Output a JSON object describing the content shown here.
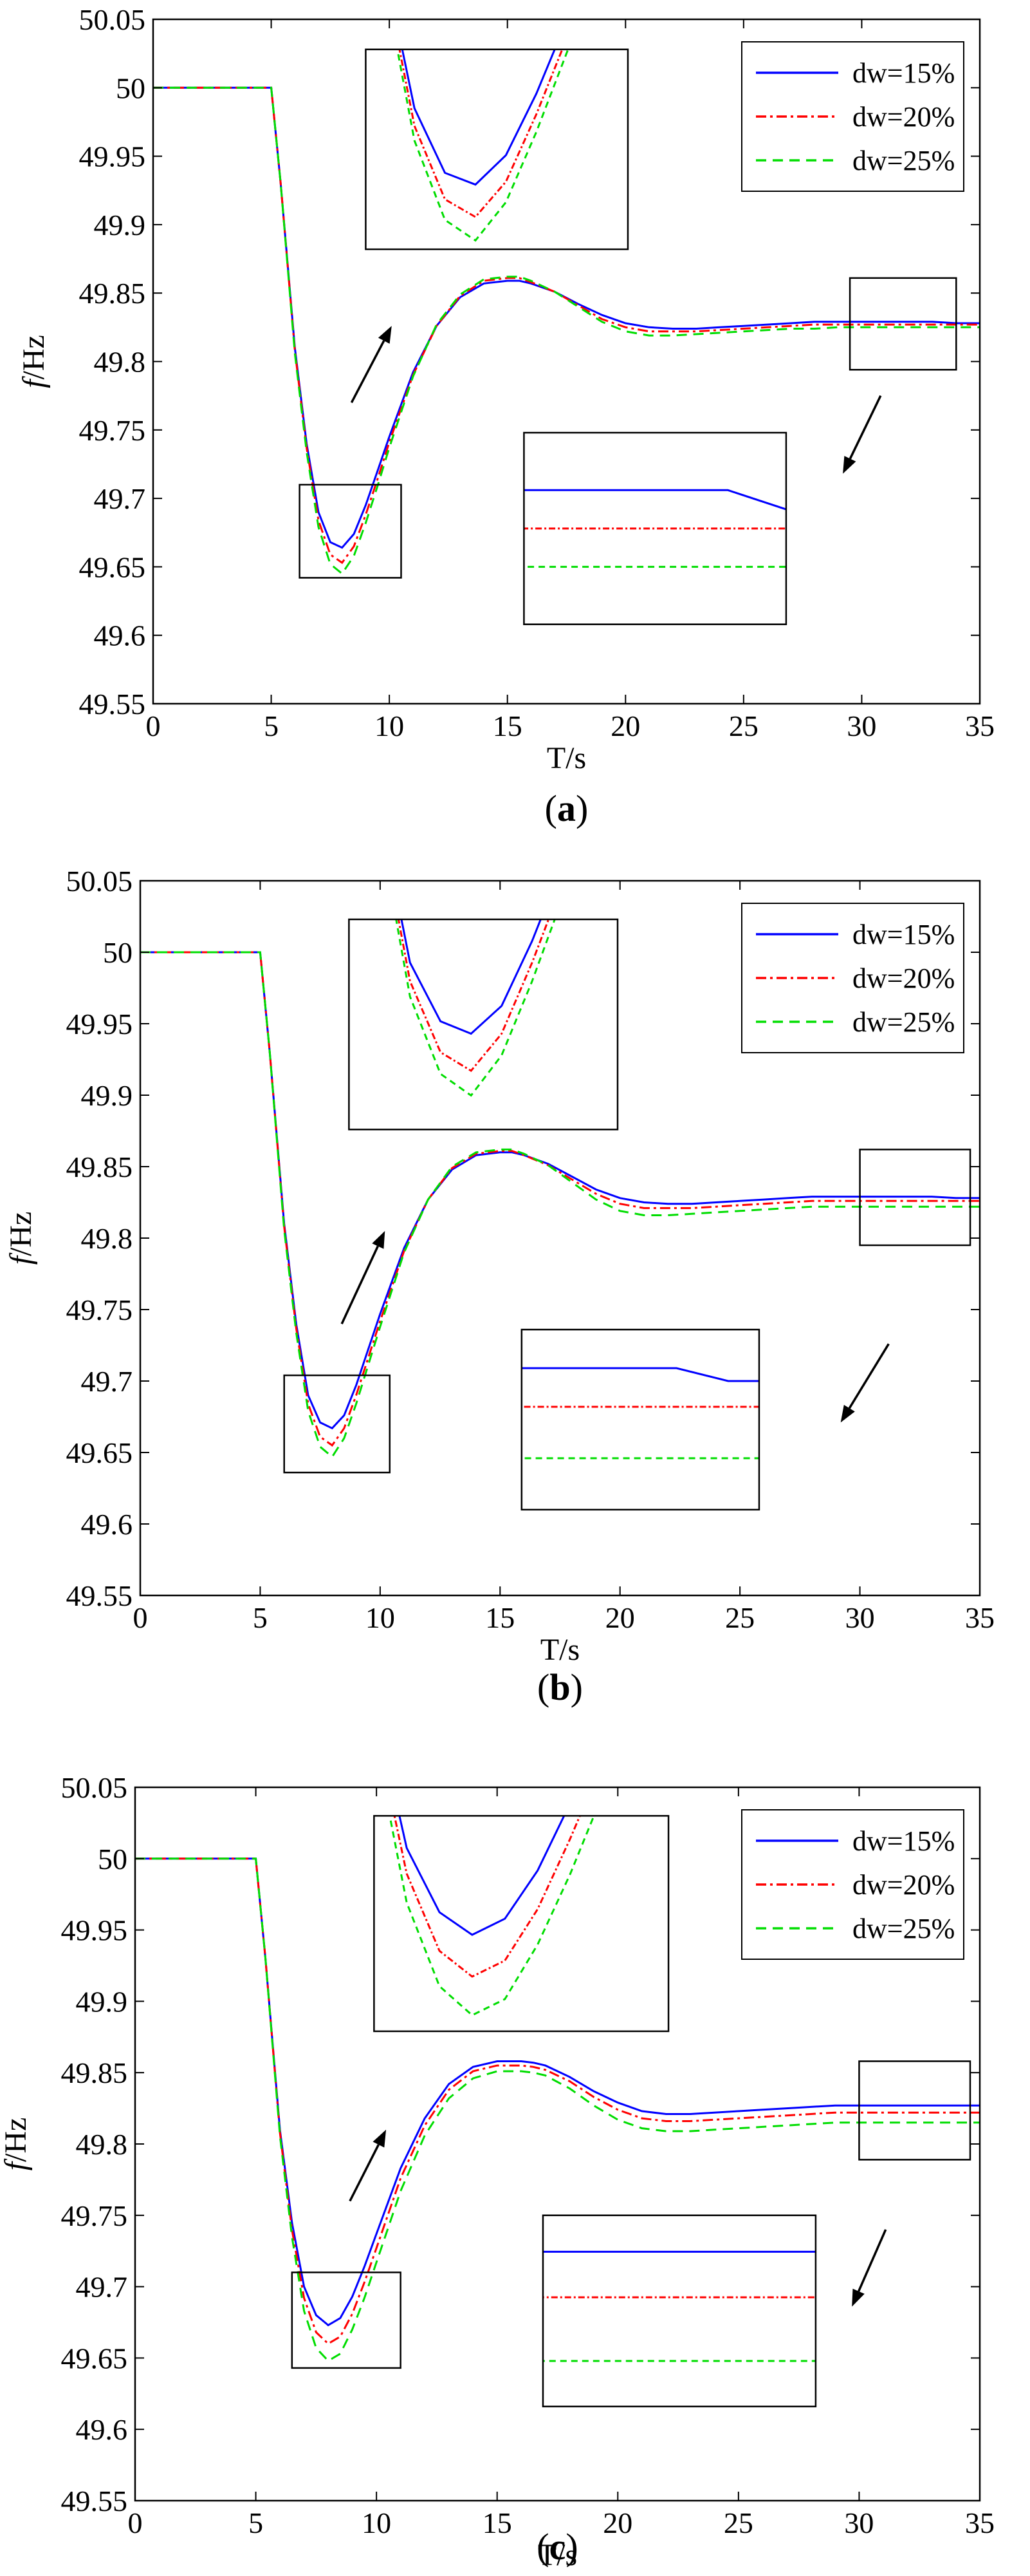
{
  "chart_data": [
    {
      "panel": "a",
      "type": "line",
      "label": "a",
      "xlabel": "T/s",
      "ylabel_italic": "f",
      "ylabel_rest": "/Hz",
      "xlim": [
        0,
        35
      ],
      "ylim": [
        49.55,
        50.05
      ],
      "xticks": [
        "0",
        "5",
        "10",
        "15",
        "20",
        "25",
        "30",
        "35"
      ],
      "yticks": [
        "49.55",
        "49.6",
        "49.65",
        "49.7",
        "49.75",
        "49.8",
        "49.85",
        "49.9",
        "49.95",
        "50",
        "50.05"
      ],
      "legend_position": "top-right",
      "series": [
        {
          "name": "dw=15%",
          "color": "#0000ff",
          "dash": "solid",
          "x": [
            0,
            5,
            5.4,
            6,
            6.5,
            7,
            7.5,
            8,
            8.5,
            9,
            9.5,
            10,
            11,
            12,
            13,
            14,
            15,
            15.5,
            16,
            17,
            18,
            19,
            20,
            21,
            22,
            23,
            24,
            25,
            26,
            27,
            28,
            29,
            30,
            31,
            32,
            33,
            34,
            35
          ],
          "y": [
            50,
            50,
            49.93,
            49.81,
            49.74,
            49.69,
            49.668,
            49.664,
            49.674,
            49.695,
            49.72,
            49.745,
            49.792,
            49.826,
            49.847,
            49.857,
            49.859,
            49.859,
            49.857,
            49.851,
            49.842,
            49.834,
            49.828,
            49.825,
            49.824,
            49.824,
            49.825,
            49.826,
            49.827,
            49.828,
            49.829,
            49.829,
            49.829,
            49.829,
            49.829,
            49.829,
            49.828,
            49.828
          ]
        },
        {
          "name": "dw=20%",
          "color": "#ff0000",
          "dash": "dashdot",
          "x": [
            0,
            5,
            5.4,
            6,
            6.5,
            7,
            7.5,
            8,
            8.5,
            9,
            9.5,
            10,
            11,
            12,
            13,
            14,
            15,
            15.5,
            16,
            17,
            18,
            19,
            20,
            21,
            22,
            23,
            24,
            25,
            26,
            27,
            28,
            29,
            30,
            31,
            32,
            33,
            34,
            35
          ],
          "y": [
            50,
            50,
            49.93,
            49.808,
            49.737,
            49.684,
            49.659,
            49.653,
            49.665,
            49.688,
            49.714,
            49.741,
            49.79,
            49.826,
            49.848,
            49.859,
            49.861,
            49.861,
            49.858,
            49.851,
            49.841,
            49.831,
            49.825,
            49.822,
            49.822,
            49.822,
            49.823,
            49.824,
            49.825,
            49.826,
            49.827,
            49.827,
            49.827,
            49.827,
            49.827,
            49.827,
            49.827,
            49.827
          ]
        },
        {
          "name": "dw=25%",
          "color": "#00dd00",
          "dash": "dashed",
          "x": [
            0,
            5,
            5.4,
            6,
            6.5,
            7,
            7.5,
            8,
            8.5,
            9,
            9.5,
            10,
            11,
            12,
            13,
            14,
            15,
            15.5,
            16,
            17,
            18,
            19,
            20,
            21,
            22,
            23,
            24,
            25,
            26,
            27,
            28,
            29,
            30,
            31,
            32,
            33,
            34,
            35
          ],
          "y": [
            50,
            50,
            49.93,
            49.806,
            49.734,
            49.679,
            49.652,
            49.645,
            49.658,
            49.682,
            49.709,
            49.737,
            49.789,
            49.827,
            49.849,
            49.86,
            49.862,
            49.862,
            49.859,
            49.851,
            49.84,
            49.829,
            49.822,
            49.819,
            49.819,
            49.82,
            49.821,
            49.822,
            49.823,
            49.824,
            49.824,
            49.825,
            49.825,
            49.825,
            49.825,
            49.825,
            49.825,
            49.825
          ]
        }
      ],
      "boxes": [
        {
          "x0": 6.2,
          "x1": 10.5,
          "y0": 49.642,
          "y1": 49.71
        },
        {
          "x0": 29.5,
          "x1": 34,
          "y0": 49.794,
          "y1": 49.861
        }
      ],
      "insets": [
        {
          "x0": 9,
          "x1": 20.1,
          "y0": 49.882,
          "y1": 50.028,
          "sx0": 6.2,
          "sx1": 10.5,
          "sy0": 49.642,
          "sy1": 49.71
        },
        {
          "x0": 15.7,
          "x1": 26.8,
          "y0": 49.608,
          "y1": 49.748,
          "sx0": 29.5,
          "sx1": 34,
          "sy0": 49.822,
          "sy1": 49.832
        }
      ],
      "arrows": [
        {
          "x0": 8.4,
          "y0": 49.77,
          "x1": 10.1,
          "y1": 49.826
        },
        {
          "x0": 30.8,
          "y0": 49.775,
          "x1": 29.2,
          "y1": 49.718
        }
      ]
    },
    {
      "panel": "b",
      "type": "line",
      "label": "b",
      "xlabel": "T/s",
      "ylabel_italic": "f",
      "ylabel_rest": "/Hz",
      "xlim": [
        0,
        35
      ],
      "ylim": [
        49.55,
        50.05
      ],
      "xticks": [
        "0",
        "5",
        "10",
        "15",
        "20",
        "25",
        "30",
        "35"
      ],
      "yticks": [
        "49.55",
        "49.6",
        "49.65",
        "49.7",
        "49.75",
        "49.8",
        "49.85",
        "49.9",
        "49.95",
        "50",
        "50.05"
      ],
      "legend_position": "top-right",
      "series": [
        {
          "name": "dw=15%",
          "color": "#0000ff",
          "dash": "solid",
          "x": [
            0,
            5,
            5.4,
            6,
            6.5,
            7,
            7.5,
            8,
            8.5,
            9,
            9.5,
            10,
            11,
            12,
            13,
            14,
            15,
            15.5,
            16,
            17,
            18,
            19,
            20,
            21,
            22,
            23,
            24,
            25,
            26,
            27,
            28,
            29,
            30,
            31,
            32,
            33,
            34,
            35
          ],
          "y": [
            50,
            50,
            49.93,
            49.81,
            49.74,
            49.69,
            49.671,
            49.667,
            49.676,
            49.697,
            49.722,
            49.747,
            49.793,
            49.827,
            49.848,
            49.858,
            49.86,
            49.86,
            49.858,
            49.852,
            49.843,
            49.834,
            49.828,
            49.825,
            49.824,
            49.824,
            49.825,
            49.826,
            49.827,
            49.828,
            49.829,
            49.829,
            49.829,
            49.829,
            49.829,
            49.829,
            49.828,
            49.828
          ]
        },
        {
          "name": "dw=20%",
          "color": "#ff0000",
          "dash": "dashdot",
          "x": [
            0,
            5,
            5.4,
            6,
            6.5,
            7,
            7.5,
            8,
            8.5,
            9,
            9.5,
            10,
            11,
            12,
            13,
            14,
            15,
            15.5,
            16,
            17,
            18,
            19,
            20,
            21,
            22,
            23,
            24,
            25,
            26,
            27,
            28,
            29,
            30,
            31,
            32,
            33,
            34,
            35
          ],
          "y": [
            50,
            50,
            49.93,
            49.808,
            49.737,
            49.684,
            49.661,
            49.655,
            49.667,
            49.69,
            49.716,
            49.742,
            49.791,
            49.827,
            49.849,
            49.859,
            49.861,
            49.861,
            49.858,
            49.851,
            49.841,
            49.831,
            49.824,
            49.821,
            49.821,
            49.821,
            49.822,
            49.823,
            49.824,
            49.825,
            49.826,
            49.826,
            49.826,
            49.826,
            49.826,
            49.826,
            49.826,
            49.826
          ]
        },
        {
          "name": "dw=25%",
          "color": "#00dd00",
          "dash": "dashed",
          "x": [
            0,
            5,
            5.4,
            6,
            6.5,
            7,
            7.5,
            8,
            8.5,
            9,
            9.5,
            10,
            11,
            12,
            13,
            14,
            15,
            15.5,
            16,
            17,
            18,
            19,
            20,
            21,
            22,
            23,
            24,
            25,
            26,
            27,
            28,
            29,
            30,
            31,
            32,
            33,
            34,
            35
          ],
          "y": [
            50,
            50,
            49.93,
            49.806,
            49.734,
            49.679,
            49.654,
            49.647,
            49.66,
            49.684,
            49.711,
            49.738,
            49.79,
            49.827,
            49.85,
            49.86,
            49.862,
            49.862,
            49.859,
            49.851,
            49.839,
            49.827,
            49.819,
            49.816,
            49.816,
            49.817,
            49.818,
            49.819,
            49.82,
            49.821,
            49.822,
            49.822,
            49.822,
            49.822,
            49.822,
            49.822,
            49.822,
            49.822
          ]
        }
      ],
      "boxes": [
        {
          "x0": 6,
          "x1": 10.4,
          "y0": 49.636,
          "y1": 49.704
        },
        {
          "x0": 30,
          "x1": 34.6,
          "y0": 49.795,
          "y1": 49.862
        }
      ],
      "insets": [
        {
          "x0": 8.7,
          "x1": 19.9,
          "y0": 49.876,
          "y1": 50.023,
          "sx0": 6,
          "sx1": 10.4,
          "sy0": 49.636,
          "sy1": 49.704
        },
        {
          "x0": 15.9,
          "x1": 25.8,
          "y0": 49.61,
          "y1": 49.736,
          "sx0": 30,
          "sx1": 34.6,
          "sy0": 49.818,
          "sy1": 49.832
        }
      ],
      "arrows": [
        {
          "x0": 8.4,
          "y0": 49.74,
          "x1": 10.2,
          "y1": 49.805
        },
        {
          "x0": 31.2,
          "y0": 49.726,
          "x1": 29.2,
          "y1": 49.671
        }
      ]
    },
    {
      "panel": "c",
      "type": "line",
      "label": "c",
      "xlabel": "T/s",
      "ylabel_italic": "f",
      "ylabel_rest": "/Hz",
      "xlim": [
        0,
        35
      ],
      "ylim": [
        49.55,
        50.05
      ],
      "xticks": [
        "0",
        "5",
        "10",
        "15",
        "20",
        "25",
        "30",
        "35"
      ],
      "yticks": [
        "49.55",
        "49.6",
        "49.65",
        "49.7",
        "49.75",
        "49.8",
        "49.85",
        "49.9",
        "49.95",
        "50",
        "50.05"
      ],
      "legend_position": "top-right",
      "series": [
        {
          "name": "dw=15%",
          "color": "#0000ff",
          "dash": "solid",
          "x": [
            0,
            5,
            5.4,
            6,
            6.5,
            7,
            7.5,
            8,
            8.5,
            9,
            9.5,
            10,
            11,
            12,
            13,
            14,
            15,
            16,
            16.5,
            17,
            18,
            19,
            20,
            21,
            22,
            23,
            24,
            25,
            26,
            27,
            28,
            29,
            30,
            31,
            32,
            33,
            34,
            35
          ],
          "y": [
            50,
            50,
            49.93,
            49.81,
            49.745,
            49.7,
            49.68,
            49.673,
            49.678,
            49.693,
            49.714,
            49.737,
            49.783,
            49.818,
            49.842,
            49.854,
            49.858,
            49.858,
            49.857,
            49.855,
            49.847,
            49.837,
            49.829,
            49.823,
            49.821,
            49.821,
            49.822,
            49.823,
            49.824,
            49.825,
            49.826,
            49.827,
            49.827,
            49.827,
            49.827,
            49.827,
            49.827,
            49.827
          ]
        },
        {
          "name": "dw=20%",
          "color": "#ff0000",
          "dash": "dashdot",
          "x": [
            0,
            5,
            5.4,
            6,
            6.5,
            7,
            7.5,
            8,
            8.5,
            9,
            9.5,
            10,
            11,
            12,
            13,
            14,
            15,
            16,
            16.5,
            17,
            18,
            19,
            20,
            21,
            22,
            23,
            24,
            25,
            26,
            27,
            28,
            29,
            30,
            31,
            32,
            33,
            34,
            35
          ],
          "y": [
            50,
            50,
            49.93,
            49.808,
            49.74,
            49.692,
            49.668,
            49.66,
            49.665,
            49.681,
            49.703,
            49.727,
            49.776,
            49.813,
            49.838,
            49.851,
            49.855,
            49.855,
            49.854,
            49.852,
            49.844,
            49.833,
            49.824,
            49.818,
            49.816,
            49.816,
            49.817,
            49.818,
            49.819,
            49.82,
            49.821,
            49.822,
            49.822,
            49.822,
            49.822,
            49.822,
            49.822,
            49.822
          ]
        },
        {
          "name": "dw=25%",
          "color": "#00dd00",
          "dash": "dashed",
          "x": [
            0,
            5,
            5.4,
            6,
            6.5,
            7,
            7.5,
            8,
            8.5,
            9,
            9.5,
            10,
            11,
            12,
            13,
            14,
            15,
            16,
            16.5,
            17,
            18,
            19,
            20,
            21,
            22,
            23,
            24,
            25,
            26,
            27,
            28,
            29,
            30,
            31,
            32,
            33,
            34,
            35
          ],
          "y": [
            50,
            50,
            49.93,
            49.806,
            49.735,
            49.683,
            49.657,
            49.648,
            49.653,
            49.67,
            49.692,
            49.717,
            49.767,
            49.806,
            49.832,
            49.846,
            49.851,
            49.851,
            49.85,
            49.848,
            49.839,
            49.827,
            49.817,
            49.811,
            49.809,
            49.809,
            49.81,
            49.811,
            49.812,
            49.813,
            49.814,
            49.815,
            49.815,
            49.815,
            49.815,
            49.815,
            49.815,
            49.815
          ]
        }
      ],
      "boxes": [
        {
          "x0": 6.5,
          "x1": 11,
          "y0": 49.643,
          "y1": 49.71
        },
        {
          "x0": 30,
          "x1": 34.6,
          "y0": 49.789,
          "y1": 49.858
        }
      ],
      "insets": [
        {
          "x0": 9.9,
          "x1": 22.1,
          "y0": 49.879,
          "y1": 50.03,
          "sx0": 6.5,
          "sx1": 11,
          "sy0": 49.643,
          "sy1": 49.71
        },
        {
          "x0": 16.9,
          "x1": 28.2,
          "y0": 49.616,
          "y1": 49.75,
          "sx0": 30,
          "sx1": 34.6,
          "sy0": 49.81,
          "sy1": 49.831
        }
      ],
      "arrows": [
        {
          "x0": 8.9,
          "y0": 49.76,
          "x1": 10.4,
          "y1": 49.81
        },
        {
          "x0": 31.1,
          "y0": 49.74,
          "x1": 29.7,
          "y1": 49.686
        }
      ]
    }
  ]
}
